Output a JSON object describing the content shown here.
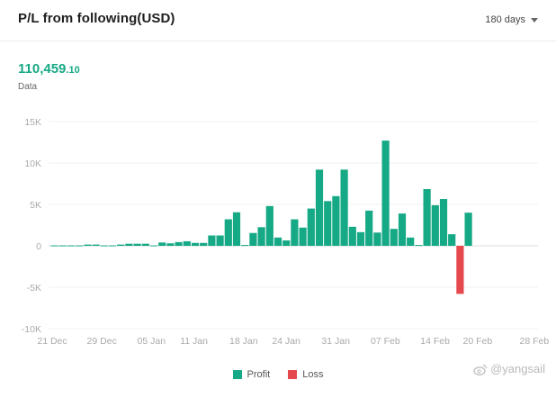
{
  "header": {
    "title": "P/L from following(USD)",
    "range_label": "180 days"
  },
  "summary": {
    "integer": "110,459",
    "decimals": ".10",
    "label": "Data"
  },
  "colors": {
    "profit": "#16a985",
    "loss": "#e5484d"
  },
  "chart_data": {
    "type": "bar",
    "ylim": [
      -10000,
      15000
    ],
    "y_ticks": [
      15000,
      10000,
      5000,
      0,
      -5000,
      -10000
    ],
    "y_tick_labels": [
      "15K",
      "10K",
      "5K",
      "0",
      "-5K",
      "-10K"
    ],
    "x_tick_labels": [
      "21 Dec",
      "29 Dec",
      "05 Jan",
      "11 Jan",
      "18 Jan",
      "24 Jan",
      "31 Jan",
      "07 Feb",
      "14 Feb",
      "20 Feb",
      "28 Feb"
    ],
    "x_tick_index": [
      0,
      7,
      14,
      20,
      27,
      33,
      40,
      47,
      54,
      60,
      68
    ],
    "grid": true,
    "legend_position": "bottom",
    "series": [
      {
        "name": "Profit",
        "values": [
          50,
          50,
          50,
          50,
          150,
          150,
          50,
          50,
          150,
          250,
          250,
          250,
          50,
          400,
          300,
          450,
          550,
          350,
          350,
          1250,
          1250,
          3200,
          4050,
          100,
          1550,
          2250,
          4800,
          1000,
          650,
          3200,
          2200,
          4500,
          9200,
          5400,
          6000,
          9200,
          2300,
          1650,
          4250,
          1600,
          12700,
          2050,
          3900,
          1000,
          100,
          6850,
          4900,
          5650,
          1400,
          0,
          4000
        ]
      },
      {
        "name": "Loss",
        "values": [
          0,
          0,
          0,
          0,
          0,
          0,
          0,
          0,
          0,
          0,
          0,
          0,
          0,
          0,
          0,
          0,
          0,
          0,
          0,
          0,
          0,
          0,
          0,
          0,
          0,
          0,
          0,
          0,
          0,
          0,
          0,
          0,
          0,
          0,
          0,
          0,
          0,
          0,
          0,
          0,
          0,
          0,
          0,
          0,
          0,
          0,
          0,
          0,
          0,
          -5800,
          0
        ]
      }
    ]
  },
  "legend": {
    "profit_label": "Profit",
    "loss_label": "Loss"
  },
  "watermark": {
    "text": "@yangsail",
    "icon": "weibo-icon"
  }
}
